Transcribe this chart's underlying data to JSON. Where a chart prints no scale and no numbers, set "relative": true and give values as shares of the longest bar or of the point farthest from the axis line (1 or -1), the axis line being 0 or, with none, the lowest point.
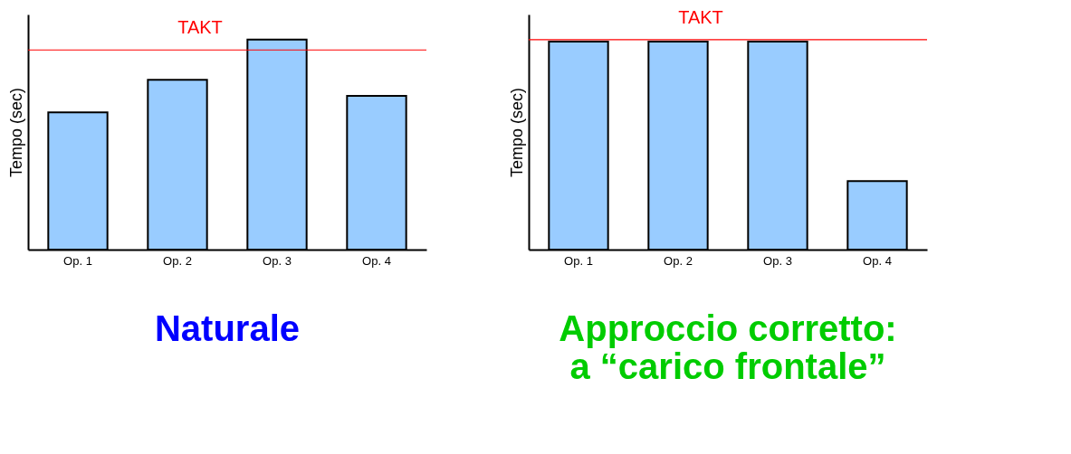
{
  "chart_data": [
    {
      "type": "bar",
      "title": "Naturale",
      "ylabel": "Tempo (sec)",
      "categories": [
        "Op. 1",
        "Op. 2",
        "Op. 3",
        "Op. 4"
      ],
      "values": [
        0.654,
        0.809,
        1,
        0.732
      ],
      "color": "#99ccff",
      "relative": true,
      "ref_lines": [
        {
          "axis": "y",
          "value": 0.951,
          "label": "TAKT",
          "color": "#ff0000"
        }
      ]
    },
    {
      "type": "bar",
      "title": [
        "Approccio corretto:",
        "a “carico frontale”"
      ],
      "ylabel": "Tempo (sec)",
      "categories": [
        "Op. 1",
        "Op. 2",
        "Op. 3",
        "Op. 4"
      ],
      "values": [
        1,
        1,
        1,
        0.329
      ],
      "color": "#99ccff",
      "relative": true,
      "ref_lines": [
        {
          "axis": "y",
          "value": 1.009,
          "label": "TAKT",
          "color": "#ff0000"
        }
      ]
    }
  ]
}
